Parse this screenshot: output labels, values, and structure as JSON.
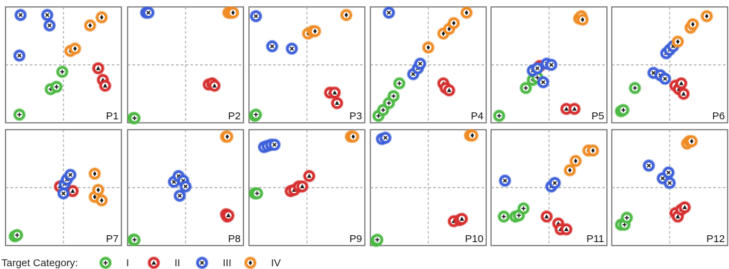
{
  "chart_data": {
    "type": "scatter",
    "layout": {
      "rows": 2,
      "cols": 6
    },
    "axes": {
      "xlim": [
        0,
        1
      ],
      "ylim": [
        0,
        1
      ],
      "ticks": false,
      "guides_at": [
        0.5,
        0.5
      ]
    },
    "legend": {
      "title": "Target Category:",
      "placement": "bottom-left",
      "entries": [
        {
          "category": "I",
          "label": "I",
          "color": "#4cb944",
          "icon": "plus-circle-icon"
        },
        {
          "category": "II",
          "label": "II",
          "color": "#d62f2f",
          "icon": "triangle-circle-icon"
        },
        {
          "category": "III",
          "label": "III",
          "color": "#3d5fd9",
          "icon": "cross-circle-icon"
        },
        {
          "category": "IV",
          "label": "IV",
          "color": "#ef8c26",
          "icon": "diamond-circle-icon"
        }
      ]
    },
    "panels": [
      {
        "label": "P1",
        "points": [
          {
            "c": "I",
            "x": 0.12,
            "y": 0.07
          },
          {
            "c": "I",
            "x": 0.39,
            "y": 0.29
          },
          {
            "c": "I",
            "x": 0.44,
            "y": 0.31
          },
          {
            "c": "I",
            "x": 0.49,
            "y": 0.44
          },
          {
            "c": "II",
            "x": 0.8,
            "y": 0.47
          },
          {
            "c": "II",
            "x": 0.84,
            "y": 0.37
          },
          {
            "c": "II",
            "x": 0.86,
            "y": 0.32
          },
          {
            "c": "III",
            "x": 0.13,
            "y": 0.93
          },
          {
            "c": "III",
            "x": 0.36,
            "y": 0.93
          },
          {
            "c": "III",
            "x": 0.38,
            "y": 0.84
          },
          {
            "c": "III",
            "x": 0.12,
            "y": 0.58
          },
          {
            "c": "IV",
            "x": 0.73,
            "y": 0.84
          },
          {
            "c": "IV",
            "x": 0.83,
            "y": 0.91
          },
          {
            "c": "IV",
            "x": 0.56,
            "y": 0.62
          },
          {
            "c": "IV",
            "x": 0.6,
            "y": 0.64
          }
        ]
      },
      {
        "label": "P2",
        "points": [
          {
            "c": "I",
            "x": 0.05,
            "y": 0.04
          },
          {
            "c": "I",
            "x": 0.06,
            "y": 0.04
          },
          {
            "c": "II",
            "x": 0.7,
            "y": 0.33
          },
          {
            "c": "II",
            "x": 0.73,
            "y": 0.34
          },
          {
            "c": "II",
            "x": 0.75,
            "y": 0.32
          },
          {
            "c": "III",
            "x": 0.16,
            "y": 0.95
          },
          {
            "c": "III",
            "x": 0.18,
            "y": 0.95
          },
          {
            "c": "IV",
            "x": 0.87,
            "y": 0.95
          },
          {
            "c": "IV",
            "x": 0.89,
            "y": 0.95
          },
          {
            "c": "IV",
            "x": 0.91,
            "y": 0.95
          }
        ]
      },
      {
        "label": "P3",
        "points": [
          {
            "c": "I",
            "x": 0.05,
            "y": 0.06
          },
          {
            "c": "I",
            "x": 0.06,
            "y": 0.07
          },
          {
            "c": "II",
            "x": 0.7,
            "y": 0.26
          },
          {
            "c": "II",
            "x": 0.74,
            "y": 0.26
          },
          {
            "c": "II",
            "x": 0.76,
            "y": 0.17
          },
          {
            "c": "III",
            "x": 0.06,
            "y": 0.92
          },
          {
            "c": "III",
            "x": 0.2,
            "y": 0.66
          },
          {
            "c": "III",
            "x": 0.37,
            "y": 0.64
          },
          {
            "c": "IV",
            "x": 0.51,
            "y": 0.77
          },
          {
            "c": "IV",
            "x": 0.55,
            "y": 0.79
          },
          {
            "c": "IV",
            "x": 0.57,
            "y": 0.79
          },
          {
            "c": "IV",
            "x": 0.84,
            "y": 0.93
          }
        ]
      },
      {
        "label": "P4",
        "points": [
          {
            "c": "I",
            "x": 0.07,
            "y": 0.06
          },
          {
            "c": "I",
            "x": 0.11,
            "y": 0.11
          },
          {
            "c": "I",
            "x": 0.16,
            "y": 0.17
          },
          {
            "c": "I",
            "x": 0.2,
            "y": 0.23
          },
          {
            "c": "I",
            "x": 0.25,
            "y": 0.34
          },
          {
            "c": "II",
            "x": 0.63,
            "y": 0.34
          },
          {
            "c": "II",
            "x": 0.65,
            "y": 0.3
          },
          {
            "c": "II",
            "x": 0.68,
            "y": 0.28
          },
          {
            "c": "III",
            "x": 0.16,
            "y": 0.95
          },
          {
            "c": "III",
            "x": 0.37,
            "y": 0.42
          },
          {
            "c": "III",
            "x": 0.41,
            "y": 0.47
          },
          {
            "c": "III",
            "x": 0.43,
            "y": 0.51
          },
          {
            "c": "IV",
            "x": 0.5,
            "y": 0.65
          },
          {
            "c": "IV",
            "x": 0.63,
            "y": 0.77
          },
          {
            "c": "IV",
            "x": 0.68,
            "y": 0.81
          },
          {
            "c": "IV",
            "x": 0.72,
            "y": 0.86
          },
          {
            "c": "IV",
            "x": 0.83,
            "y": 0.95
          }
        ]
      },
      {
        "label": "P5",
        "points": [
          {
            "c": "I",
            "x": 0.07,
            "y": 0.06
          },
          {
            "c": "I",
            "x": 0.3,
            "y": 0.3
          },
          {
            "c": "I",
            "x": 0.36,
            "y": 0.37
          },
          {
            "c": "I",
            "x": 0.4,
            "y": 0.39
          },
          {
            "c": "II",
            "x": 0.65,
            "y": 0.12
          },
          {
            "c": "II",
            "x": 0.72,
            "y": 0.12
          },
          {
            "c": "II",
            "x": 0.42,
            "y": 0.49
          },
          {
            "c": "III",
            "x": 0.36,
            "y": 0.45
          },
          {
            "c": "III",
            "x": 0.4,
            "y": 0.47
          },
          {
            "c": "III",
            "x": 0.48,
            "y": 0.51
          },
          {
            "c": "III",
            "x": 0.52,
            "y": 0.5
          },
          {
            "c": "III",
            "x": 0.45,
            "y": 0.35
          },
          {
            "c": "IV",
            "x": 0.76,
            "y": 0.9
          },
          {
            "c": "IV",
            "x": 0.78,
            "y": 0.92
          },
          {
            "c": "IV",
            "x": 0.79,
            "y": 0.89
          }
        ]
      },
      {
        "label": "P6",
        "points": [
          {
            "c": "I",
            "x": 0.08,
            "y": 0.1
          },
          {
            "c": "I",
            "x": 0.1,
            "y": 0.11
          },
          {
            "c": "I",
            "x": 0.2,
            "y": 0.3
          },
          {
            "c": "II",
            "x": 0.55,
            "y": 0.32
          },
          {
            "c": "II",
            "x": 0.58,
            "y": 0.29
          },
          {
            "c": "II",
            "x": 0.6,
            "y": 0.34
          },
          {
            "c": "II",
            "x": 0.62,
            "y": 0.25
          },
          {
            "c": "III",
            "x": 0.36,
            "y": 0.43
          },
          {
            "c": "III",
            "x": 0.42,
            "y": 0.41
          },
          {
            "c": "III",
            "x": 0.46,
            "y": 0.38
          },
          {
            "c": "III",
            "x": 0.47,
            "y": 0.6
          },
          {
            "c": "III",
            "x": 0.5,
            "y": 0.63
          },
          {
            "c": "III",
            "x": 0.53,
            "y": 0.66
          },
          {
            "c": "IV",
            "x": 0.57,
            "y": 0.7
          },
          {
            "c": "IV",
            "x": 0.68,
            "y": 0.82
          },
          {
            "c": "IV",
            "x": 0.7,
            "y": 0.85
          },
          {
            "c": "IV",
            "x": 0.82,
            "y": 0.92
          }
        ]
      },
      {
        "label": "P7",
        "points": [
          {
            "c": "I",
            "x": 0.08,
            "y": 0.08
          },
          {
            "c": "I",
            "x": 0.1,
            "y": 0.09
          },
          {
            "c": "II",
            "x": 0.47,
            "y": 0.51
          },
          {
            "c": "II",
            "x": 0.52,
            "y": 0.47
          },
          {
            "c": "II",
            "x": 0.58,
            "y": 0.47
          },
          {
            "c": "III",
            "x": 0.5,
            "y": 0.45
          },
          {
            "c": "III",
            "x": 0.51,
            "y": 0.53
          },
          {
            "c": "III",
            "x": 0.53,
            "y": 0.57
          },
          {
            "c": "III",
            "x": 0.56,
            "y": 0.61
          },
          {
            "c": "IV",
            "x": 0.77,
            "y": 0.62
          },
          {
            "c": "IV",
            "x": 0.77,
            "y": 0.42
          },
          {
            "c": "IV",
            "x": 0.8,
            "y": 0.48
          },
          {
            "c": "IV",
            "x": 0.83,
            "y": 0.39
          }
        ]
      },
      {
        "label": "P8",
        "points": [
          {
            "c": "I",
            "x": 0.05,
            "y": 0.05
          },
          {
            "c": "I",
            "x": 0.06,
            "y": 0.05
          },
          {
            "c": "II",
            "x": 0.85,
            "y": 0.27
          },
          {
            "c": "II",
            "x": 0.86,
            "y": 0.25
          },
          {
            "c": "II",
            "x": 0.87,
            "y": 0.26
          },
          {
            "c": "III",
            "x": 0.4,
            "y": 0.55
          },
          {
            "c": "III",
            "x": 0.44,
            "y": 0.6
          },
          {
            "c": "III",
            "x": 0.48,
            "y": 0.56
          },
          {
            "c": "III",
            "x": 0.5,
            "y": 0.51
          },
          {
            "c": "III",
            "x": 0.45,
            "y": 0.43
          },
          {
            "c": "IV",
            "x": 0.85,
            "y": 0.94
          },
          {
            "c": "IV",
            "x": 0.86,
            "y": 0.94
          }
        ]
      },
      {
        "label": "P9",
        "points": [
          {
            "c": "I",
            "x": 0.05,
            "y": 0.45
          },
          {
            "c": "I",
            "x": 0.07,
            "y": 0.45
          },
          {
            "c": "II",
            "x": 0.36,
            "y": 0.47
          },
          {
            "c": "II",
            "x": 0.39,
            "y": 0.48
          },
          {
            "c": "II",
            "x": 0.43,
            "y": 0.51
          },
          {
            "c": "II",
            "x": 0.46,
            "y": 0.51
          },
          {
            "c": "II",
            "x": 0.52,
            "y": 0.6
          },
          {
            "c": "III",
            "x": 0.13,
            "y": 0.85
          },
          {
            "c": "III",
            "x": 0.16,
            "y": 0.86
          },
          {
            "c": "III",
            "x": 0.19,
            "y": 0.87
          },
          {
            "c": "III",
            "x": 0.22,
            "y": 0.87
          },
          {
            "c": "IV",
            "x": 0.88,
            "y": 0.94
          },
          {
            "c": "IV",
            "x": 0.9,
            "y": 0.94
          }
        ]
      },
      {
        "label": "P10",
        "points": [
          {
            "c": "I",
            "x": 0.05,
            "y": 0.04
          },
          {
            "c": "I",
            "x": 0.06,
            "y": 0.05
          },
          {
            "c": "II",
            "x": 0.72,
            "y": 0.21
          },
          {
            "c": "II",
            "x": 0.77,
            "y": 0.22
          },
          {
            "c": "II",
            "x": 0.79,
            "y": 0.23
          },
          {
            "c": "III",
            "x": 0.1,
            "y": 0.92
          },
          {
            "c": "III",
            "x": 0.13,
            "y": 0.93
          },
          {
            "c": "IV",
            "x": 0.86,
            "y": 0.95
          },
          {
            "c": "IV",
            "x": 0.88,
            "y": 0.95
          }
        ]
      },
      {
        "label": "P11",
        "points": [
          {
            "c": "I",
            "x": 0.11,
            "y": 0.25
          },
          {
            "c": "I",
            "x": 0.21,
            "y": 0.25
          },
          {
            "c": "I",
            "x": 0.24,
            "y": 0.26
          },
          {
            "c": "I",
            "x": 0.28,
            "y": 0.32
          },
          {
            "c": "II",
            "x": 0.48,
            "y": 0.25
          },
          {
            "c": "II",
            "x": 0.58,
            "y": 0.19
          },
          {
            "c": "II",
            "x": 0.6,
            "y": 0.14
          },
          {
            "c": "II",
            "x": 0.65,
            "y": 0.14
          },
          {
            "c": "III",
            "x": 0.12,
            "y": 0.56
          },
          {
            "c": "III",
            "x": 0.52,
            "y": 0.51
          },
          {
            "c": "III",
            "x": 0.55,
            "y": 0.54
          },
          {
            "c": "IV",
            "x": 0.68,
            "y": 0.65
          },
          {
            "c": "IV",
            "x": 0.73,
            "y": 0.73
          },
          {
            "c": "IV",
            "x": 0.84,
            "y": 0.82
          },
          {
            "c": "IV",
            "x": 0.88,
            "y": 0.82
          }
        ]
      },
      {
        "label": "P12",
        "points": [
          {
            "c": "I",
            "x": 0.08,
            "y": 0.18
          },
          {
            "c": "I",
            "x": 0.11,
            "y": 0.18
          },
          {
            "c": "I",
            "x": 0.13,
            "y": 0.24
          },
          {
            "c": "II",
            "x": 0.55,
            "y": 0.28
          },
          {
            "c": "II",
            "x": 0.57,
            "y": 0.25
          },
          {
            "c": "II",
            "x": 0.6,
            "y": 0.31
          },
          {
            "c": "II",
            "x": 0.63,
            "y": 0.33
          },
          {
            "c": "III",
            "x": 0.32,
            "y": 0.69
          },
          {
            "c": "III",
            "x": 0.44,
            "y": 0.58
          },
          {
            "c": "III",
            "x": 0.49,
            "y": 0.63
          },
          {
            "c": "III",
            "x": 0.5,
            "y": 0.54
          },
          {
            "c": "IV",
            "x": 0.65,
            "y": 0.88
          },
          {
            "c": "IV",
            "x": 0.67,
            "y": 0.9
          },
          {
            "c": "IV",
            "x": 0.69,
            "y": 0.9
          }
        ]
      }
    ]
  }
}
